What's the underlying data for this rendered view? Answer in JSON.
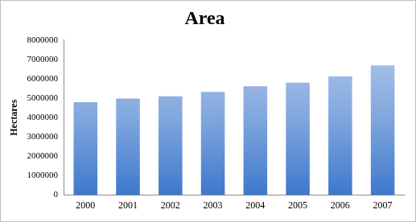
{
  "chart_data": {
    "type": "bar",
    "title": "Area",
    "y_label": "Hectares",
    "categories": [
      "2000",
      "2001",
      "2002",
      "2003",
      "2004",
      "2005",
      "2006",
      "2007"
    ],
    "values": [
      4800000,
      4980000,
      5100000,
      5330000,
      5620000,
      5800000,
      6120000,
      6700000
    ],
    "color": "#3d78cc",
    "ylim": [
      0,
      8000000
    ],
    "yticks": [
      0,
      1000000,
      2000000,
      3000000,
      4000000,
      5000000,
      6000000,
      7000000,
      8000000
    ],
    "grid": false
  }
}
